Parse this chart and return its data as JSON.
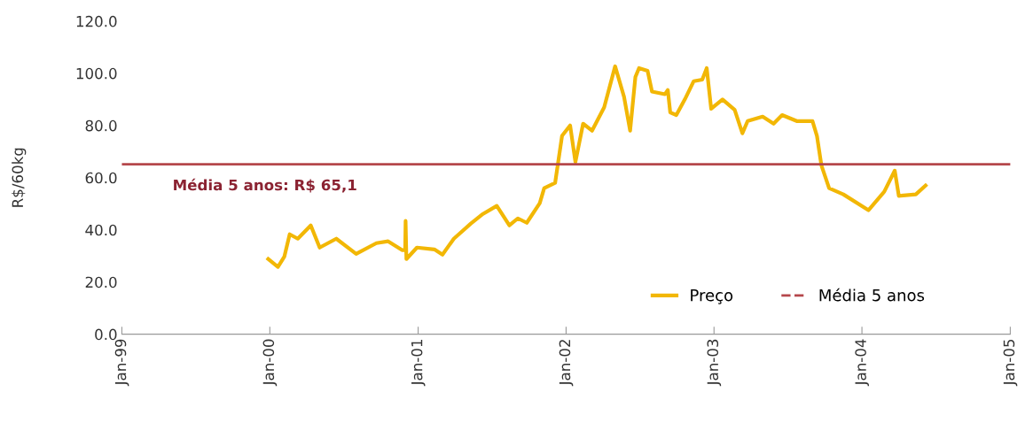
{
  "chart_data": {
    "type": "line",
    "ylabel": "R$/60kg",
    "x": [
      "1999-12-28",
      "2000-01-21",
      "2000-02-06",
      "2000-02-19",
      "2000-03-10",
      "2000-04-11",
      "2000-05-03",
      "2000-06-13",
      "2000-08-01",
      "2000-09-20",
      "2000-10-19",
      "2000-11-23",
      "2000-11-30",
      "2000-12-01",
      "2000-12-03",
      "2000-12-29",
      "2001-02-10",
      "2001-03-02",
      "2001-03-30",
      "2001-05-11",
      "2001-06-10",
      "2001-07-14",
      "2001-08-14",
      "2001-09-04",
      "2001-09-26",
      "2001-10-28",
      "2001-11-08",
      "2001-12-05",
      "2001-12-22",
      "2002-01-11",
      "2002-01-24",
      "2002-02-12",
      "2002-03-06",
      "2002-04-05",
      "2002-05-02",
      "2002-05-24",
      "2002-06-08",
      "2002-06-21",
      "2002-06-30",
      "2002-07-21",
      "2002-08-01",
      "2002-09-02",
      "2002-09-09",
      "2002-09-15",
      "2002-09-30",
      "2002-10-21",
      "2002-11-12",
      "2002-12-03",
      "2002-12-14",
      "2002-12-25",
      "2003-01-22",
      "2003-02-21",
      "2003-03-12",
      "2003-03-25",
      "2003-05-01",
      "2003-05-28",
      "2003-06-18",
      "2003-07-24",
      "2003-09-01",
      "2003-09-12",
      "2003-09-23",
      "2003-10-12",
      "2003-11-16",
      "2004-01-17",
      "2004-02-25",
      "2004-03-22",
      "2004-04-01",
      "2004-05-13",
      "2004-06-06"
    ],
    "series": [
      {
        "name": "Preço",
        "color": "#f2b705",
        "values": [
          28.8,
          25.8,
          29.8,
          38.3,
          36.6,
          41.7,
          33.2,
          36.6,
          30.8,
          34.9,
          35.6,
          32.2,
          32.2,
          43.4,
          28.8,
          33.2,
          32.5,
          30.5,
          36.6,
          42.4,
          46.1,
          49.2,
          41.7,
          44.4,
          42.7,
          50.2,
          56,
          58,
          76,
          80,
          66,
          80.7,
          78,
          87,
          102.7,
          91,
          78,
          98.6,
          102,
          101,
          93,
          92,
          93.6,
          85,
          84,
          90,
          97,
          97.6,
          102,
          86.4,
          90,
          86,
          77,
          81.7,
          83.4,
          80.7,
          84,
          81.7,
          81.7,
          76,
          64.7,
          56,
          53.6,
          47.5,
          54.6,
          62.7,
          53,
          53.6,
          57
        ]
      }
    ],
    "xlim": [
      "1999-01-01",
      "2005-01-01"
    ],
    "xticks": [
      {
        "value": "1999-01-01",
        "label": "Jan-99"
      },
      {
        "value": "2000-01-01",
        "label": "Jan-00"
      },
      {
        "value": "2001-01-01",
        "label": "Jan-01"
      },
      {
        "value": "2002-01-01",
        "label": "Jan-02"
      },
      {
        "value": "2003-01-01",
        "label": "Jan-03"
      },
      {
        "value": "2004-01-01",
        "label": "Jan-04"
      },
      {
        "value": "2005-01-01",
        "label": "Jan-05"
      }
    ],
    "ylim": [
      0,
      120
    ],
    "yticks": [
      {
        "value": 0,
        "label": "0.0"
      },
      {
        "value": 20,
        "label": "20.0"
      },
      {
        "value": 40,
        "label": "40.0"
      },
      {
        "value": 60,
        "label": "60.0"
      },
      {
        "value": 80,
        "label": "80.0"
      },
      {
        "value": 100,
        "label": "100.0"
      },
      {
        "value": 120,
        "label": "120.0"
      }
    ],
    "ref_lines": [
      {
        "axis": "y",
        "value": 65.1,
        "label": "Média 5 anos",
        "color": "#b5474b",
        "line_style": "solid"
      }
    ],
    "annotations": [
      {
        "text": "Média 5 anos: R$ 65,1",
        "x": "2000-01-01",
        "y": 65.1
      }
    ],
    "legend": "bottom right",
    "grid": false
  }
}
